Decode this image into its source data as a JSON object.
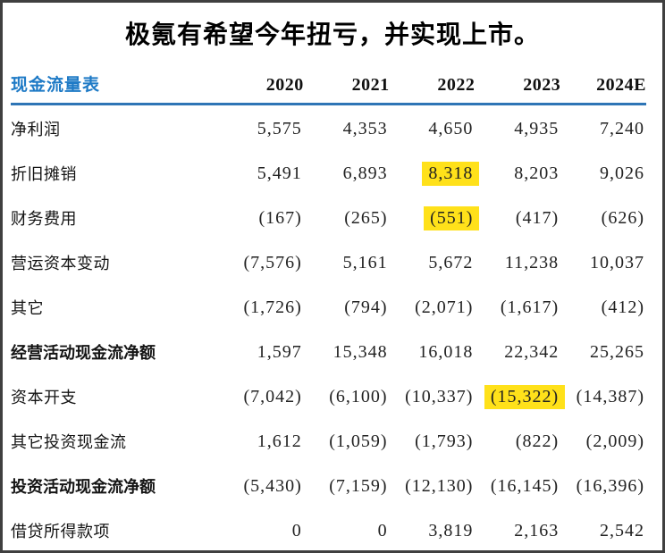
{
  "title": "极氪有希望今年扭亏，并实现上市。",
  "table": {
    "name_header": "现金流量表",
    "years": [
      "2020",
      "2021",
      "2022",
      "2023",
      "2024E"
    ],
    "rows": [
      {
        "label": "净利润",
        "values": [
          "5,575",
          "4,353",
          "4,650",
          "4,935",
          "7,240"
        ]
      },
      {
        "label": "折旧摊销",
        "values": [
          "5,491",
          "6,893",
          "8,318",
          "8,203",
          "9,026"
        ]
      },
      {
        "label": "财务费用",
        "values": [
          "(167)",
          "(265)",
          "(551)",
          "(417)",
          "(626)"
        ]
      },
      {
        "label": "营运资本变动",
        "values": [
          "(7,576)",
          "5,161",
          "5,672",
          "11,238",
          "10,037"
        ]
      },
      {
        "label": "其它",
        "values": [
          "(1,726)",
          "(794)",
          "(2,071)",
          "(1,617)",
          "(412)"
        ]
      },
      {
        "label": "经营活动现金流净额",
        "values": [
          "1,597",
          "15,348",
          "16,018",
          "22,342",
          "25,265"
        ]
      },
      {
        "label": "资本开支",
        "values": [
          "(7,042)",
          "(6,100)",
          "(10,337)",
          "(15,322)",
          "(14,387)"
        ]
      },
      {
        "label": "其它投资现金流",
        "values": [
          "1,612",
          "(1,059)",
          "(1,793)",
          "(822)",
          "(2,009)"
        ]
      },
      {
        "label": "投资活动现金流净额",
        "values": [
          "(5,430)",
          "(7,159)",
          "(12,130)",
          "(16,145)",
          "(16,396)"
        ]
      },
      {
        "label": "借贷所得款项",
        "values": [
          "0",
          "0",
          "3,819",
          "2,163",
          "2,542"
        ]
      }
    ],
    "bold_row_indices": [
      5,
      9
    ],
    "highlighted_cells": [
      {
        "row": 1,
        "col": 2,
        "value": "8,318"
      },
      {
        "row": 2,
        "col": 2,
        "value": "(551)"
      },
      {
        "row": 6,
        "col": 3,
        "value": "(15,322)"
      }
    ]
  },
  "chart_data": {
    "type": "table",
    "title": "极氪有希望今年扭亏，并实现上市。",
    "columns": [
      "现金流量表",
      "2020",
      "2021",
      "2022",
      "2023",
      "2024E"
    ],
    "rows": [
      [
        "净利润",
        5575,
        4353,
        4650,
        4935,
        7240
      ],
      [
        "折旧摊销",
        5491,
        6893,
        8318,
        8203,
        9026
      ],
      [
        "财务费用",
        -167,
        -265,
        -551,
        -417,
        -626
      ],
      [
        "营运资本变动",
        -7576,
        5161,
        5672,
        11238,
        10037
      ],
      [
        "其它",
        -1726,
        -794,
        -2071,
        -1617,
        -412
      ],
      [
        "经营活动现金流净额",
        1597,
        15348,
        16018,
        22342,
        25265
      ],
      [
        "资本开支",
        -7042,
        -6100,
        -10337,
        -15322,
        -14387
      ],
      [
        "其它投资现金流",
        1612,
        -1059,
        -1793,
        -822,
        -2009
      ],
      [
        "投资活动现金流净额",
        -5430,
        -7159,
        -12130,
        -16145,
        -16396
      ],
      [
        "借贷所得款项",
        0,
        0,
        3819,
        2163,
        2542
      ]
    ]
  },
  "colors": {
    "header_blue": "#1e7ac6",
    "divider_blue": "#2e75b6",
    "highlight_yellow": "#ffe11a",
    "frame_border": "#3f3f3f"
  }
}
